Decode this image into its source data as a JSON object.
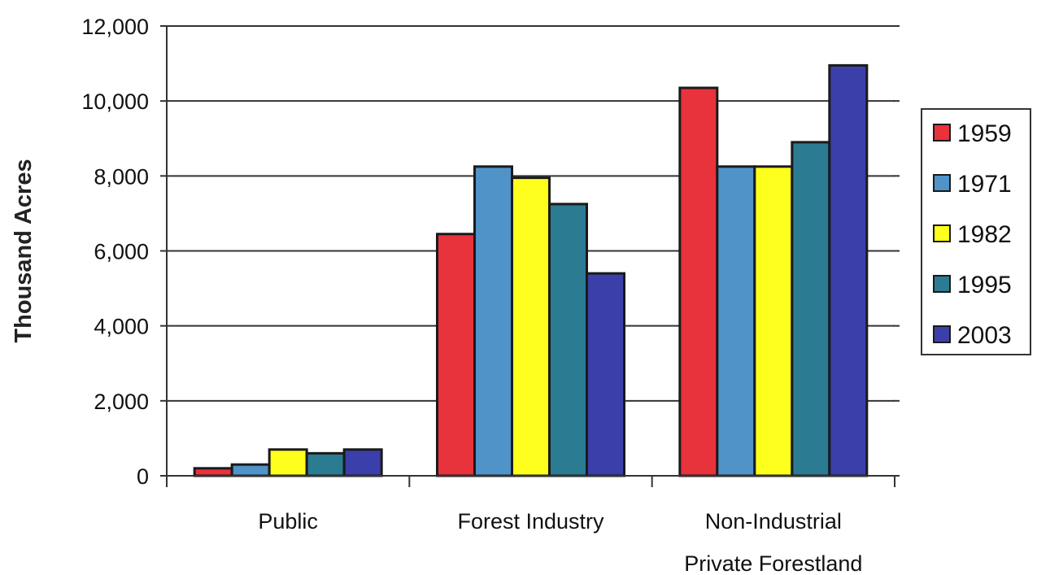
{
  "chart_data": {
    "type": "bar",
    "title": "",
    "xlabel": "",
    "ylabel": "Thousand Acres",
    "ylim": [
      0,
      12000
    ],
    "yticks": [
      0,
      2000,
      4000,
      6000,
      8000,
      10000,
      12000
    ],
    "ytick_labels": [
      "0",
      "2,000",
      "4,000",
      "6,000",
      "8,000",
      "10,000",
      "12,000"
    ],
    "grid": true,
    "legend_position": "right",
    "categories": [
      [
        "Public"
      ],
      [
        "Forest Industry"
      ],
      [
        "Non-Industrial",
        "Private Forestland"
      ]
    ],
    "series": [
      {
        "name": "1959",
        "color": "#e8323c",
        "values": [
          200,
          6450,
          10350
        ]
      },
      {
        "name": "1971",
        "color": "#4f93c9",
        "values": [
          300,
          8250,
          8250
        ]
      },
      {
        "name": "1982",
        "color": "#ffff1e",
        "values": [
          700,
          7950,
          8250
        ]
      },
      {
        "name": "1995",
        "color": "#2b7b92",
        "values": [
          600,
          7250,
          8900
        ]
      },
      {
        "name": "2003",
        "color": "#3b3faa",
        "values": [
          700,
          5400,
          10950
        ]
      }
    ]
  }
}
